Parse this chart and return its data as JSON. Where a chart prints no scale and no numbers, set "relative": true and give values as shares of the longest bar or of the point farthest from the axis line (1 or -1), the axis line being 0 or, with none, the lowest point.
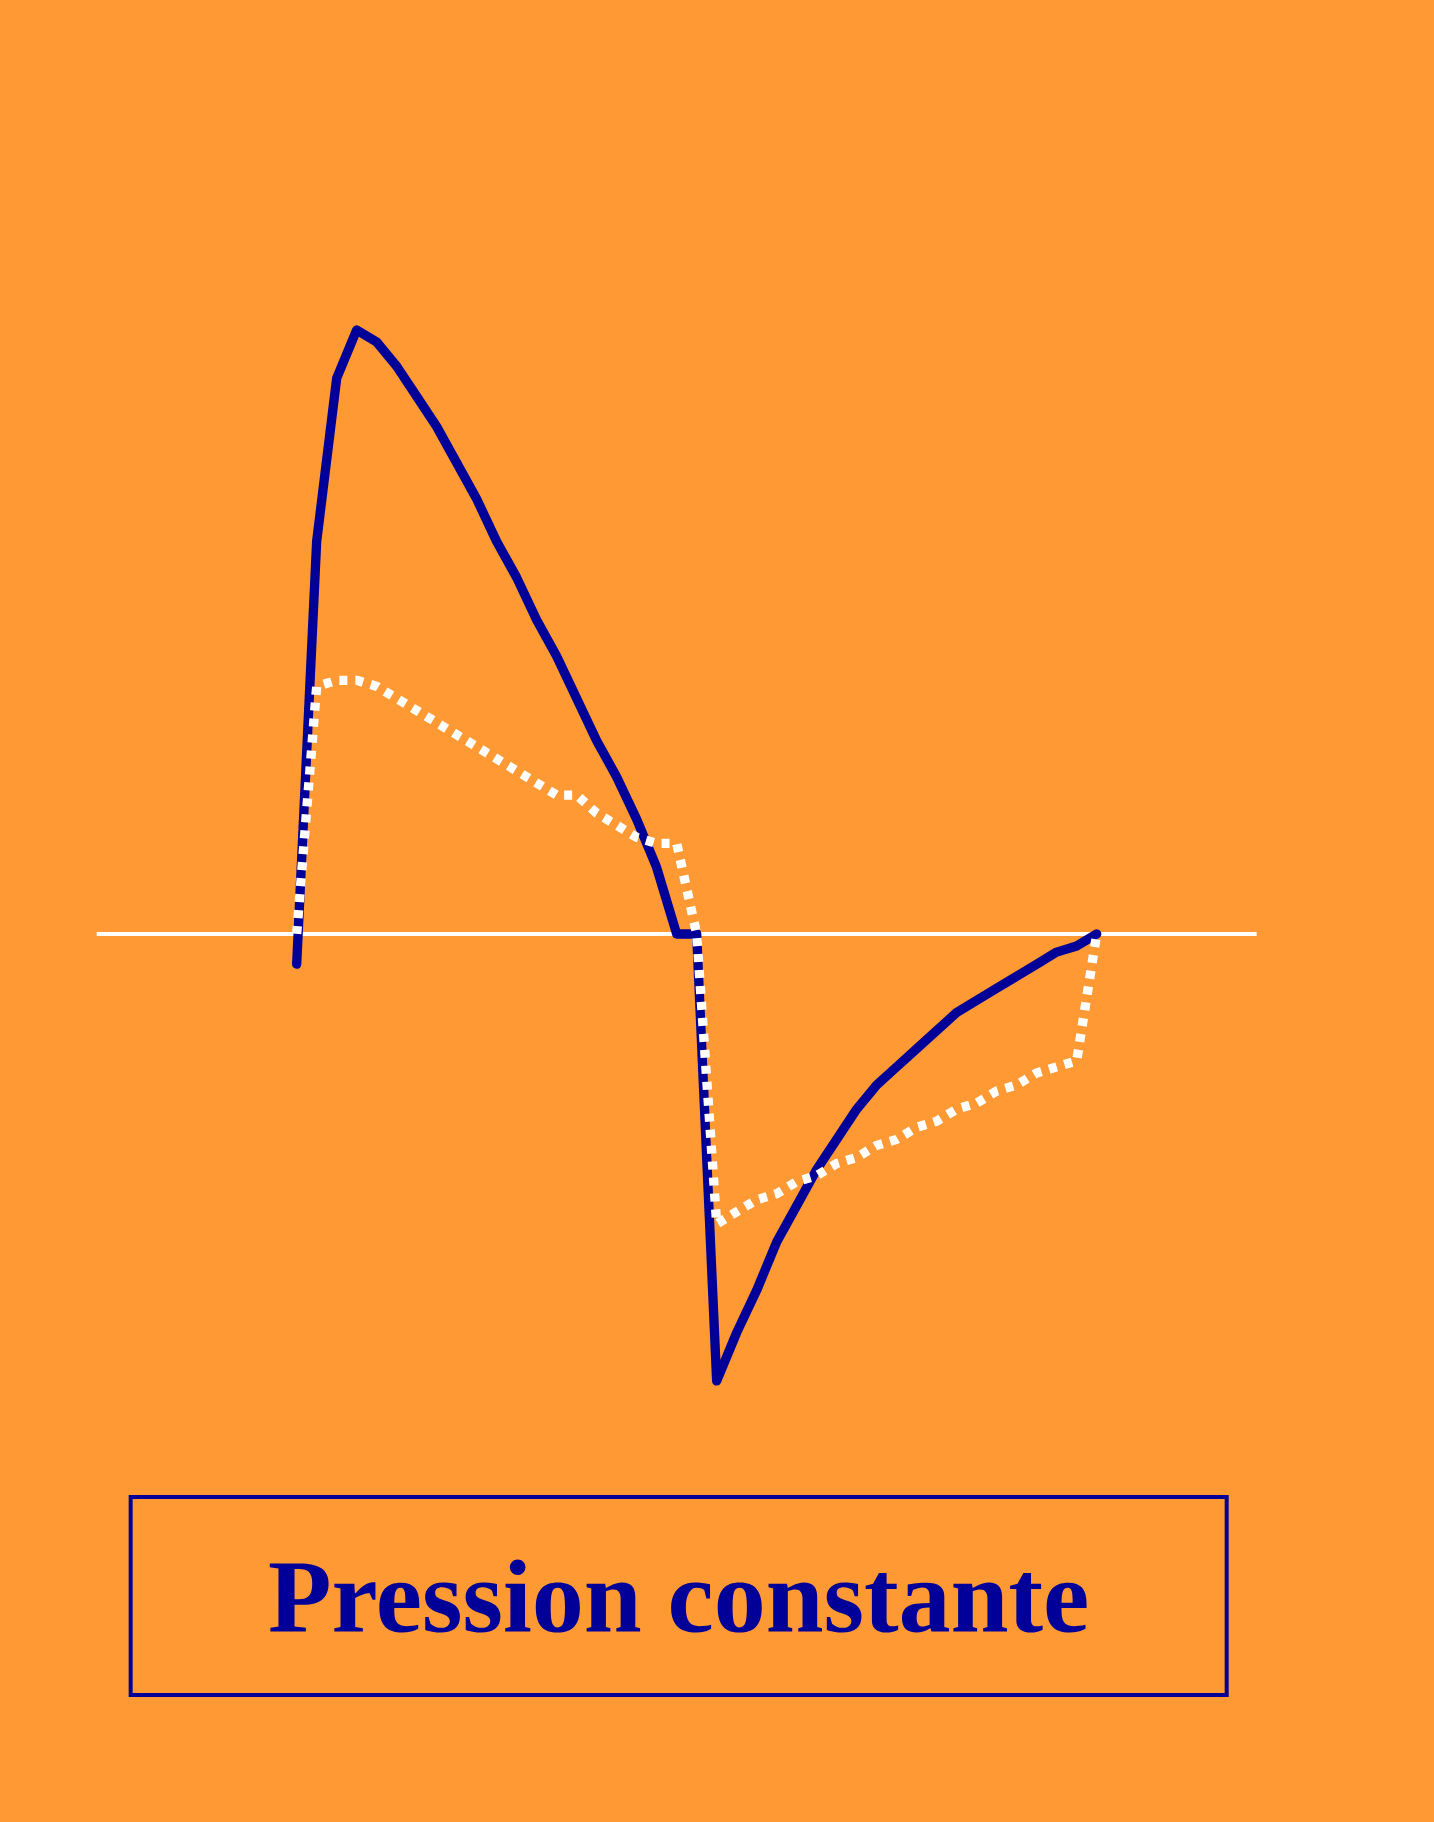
{
  "chart_data": {
    "type": "line",
    "title": "Pression constante",
    "relative": true,
    "categories": [
      null,
      null,
      null,
      null,
      null,
      null,
      null,
      null,
      null,
      null,
      null,
      null,
      null,
      null,
      null,
      null,
      null,
      null,
      null,
      null,
      null,
      null,
      null,
      null,
      null,
      null,
      null,
      null,
      null,
      null,
      null,
      null,
      null,
      null,
      null,
      null,
      null,
      null,
      null,
      null,
      null,
      null,
      null,
      null,
      null,
      null,
      null,
      null,
      null,
      null,
      null,
      null,
      null,
      null,
      null,
      null,
      null,
      null,
      null
    ],
    "series": [
      {
        "color": "#000099",
        "line_style": "solid",
        "values": [
          null,
          null,
          null,
          null,
          null,
          null,
          null,
          null,
          null,
          null,
          -0.05,
          0.65,
          0.92,
          1.0,
          0.98,
          0.94,
          0.89,
          0.84,
          0.78,
          0.72,
          0.65,
          0.59,
          0.52,
          0.46,
          0.39,
          0.32,
          0.26,
          0.19,
          0.11,
          0,
          0,
          -0.74,
          -0.66,
          -0.59,
          -0.51,
          -0.45,
          -0.39,
          -0.34,
          -0.29,
          -0.25,
          -0.22,
          -0.19,
          -0.16,
          -0.13,
          -0.11,
          -0.09,
          -0.07,
          -0.05,
          -0.03,
          -0.02,
          0,
          null,
          null,
          null,
          null,
          null,
          null,
          null,
          null
        ]
      },
      {
        "color": "#ffffff",
        "line_style": "dotted",
        "values": [
          null,
          null,
          null,
          null,
          null,
          null,
          null,
          null,
          null,
          null,
          0,
          0.41,
          0.42,
          0.42,
          0.41,
          0.39,
          0.37,
          0.35,
          0.33,
          0.31,
          0.29,
          0.27,
          0.25,
          0.23,
          0.23,
          0.2,
          0.18,
          0.16,
          0.15,
          0.15,
          0,
          -0.48,
          -0.46,
          -0.44,
          -0.43,
          -0.41,
          -0.4,
          -0.38,
          -0.37,
          -0.35,
          -0.34,
          -0.32,
          -0.31,
          -0.29,
          -0.28,
          -0.26,
          -0.25,
          -0.23,
          -0.22,
          -0.21,
          0,
          null,
          null,
          null,
          null,
          null,
          null,
          null,
          null
        ]
      }
    ]
  }
}
